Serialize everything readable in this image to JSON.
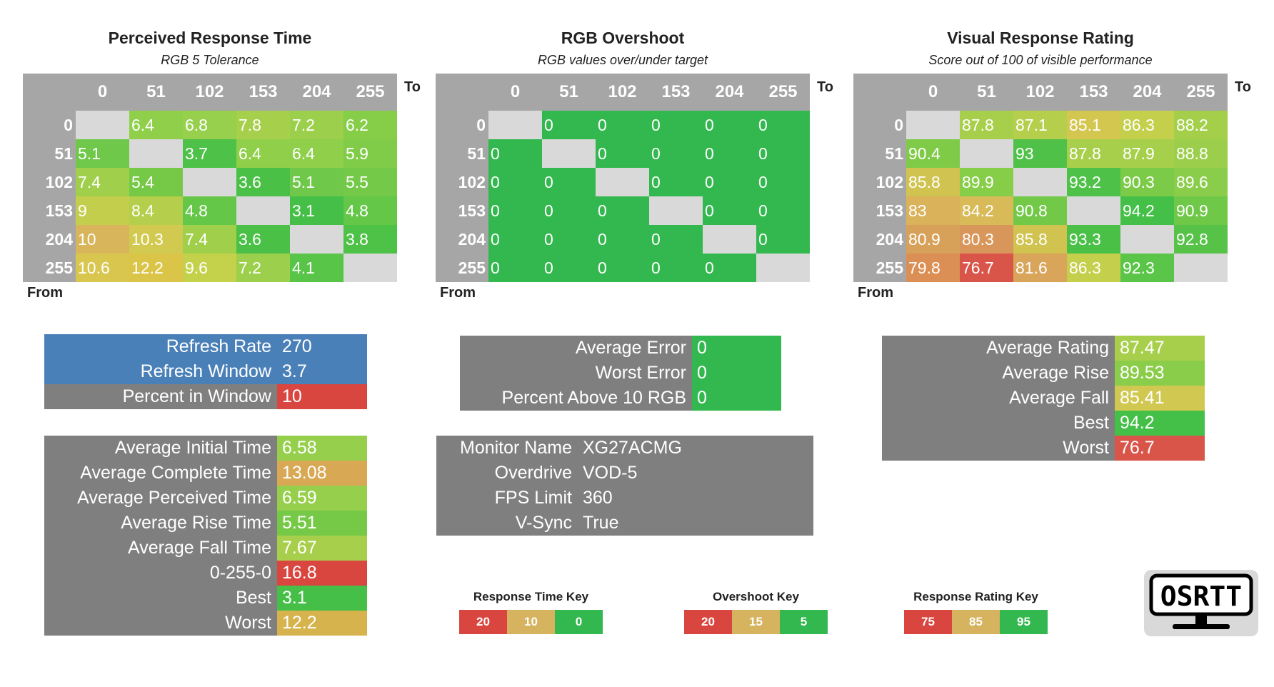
{
  "heatmaps": [
    {
      "id": "prt",
      "title": "Perceived Response Time",
      "subtitle": "RGB 5 Tolerance",
      "to_label": "To",
      "from_label": "From",
      "cols": [
        "0",
        "51",
        "102",
        "153",
        "204",
        "255"
      ],
      "rows": [
        "0",
        "51",
        "102",
        "153",
        "204",
        "255"
      ],
      "cells": [
        [
          "",
          "6.4",
          "6.8",
          "7.8",
          "7.2",
          "6.2"
        ],
        [
          "5.1",
          "",
          "3.7",
          "6.4",
          "6.4",
          "5.9"
        ],
        [
          "7.4",
          "5.4",
          "",
          "3.6",
          "5.1",
          "5.5"
        ],
        [
          "9",
          "8.4",
          "4.8",
          "",
          "3.1",
          "4.8"
        ],
        [
          "10",
          "10.3",
          "7.4",
          "3.6",
          "",
          "3.8"
        ],
        [
          "10.6",
          "12.2",
          "9.6",
          "7.2",
          "4.1",
          ""
        ]
      ],
      "colors": [
        [
          "#d9d9d9",
          "#8fcf4a",
          "#96d04c",
          "#a6cf4b",
          "#9bcf4c",
          "#86cd48"
        ],
        [
          "#6fc849",
          "#d9d9d9",
          "#4dc148",
          "#8fcf4a",
          "#8fcf4a",
          "#80cc48"
        ],
        [
          "#9fcf4b",
          "#76c947",
          "#d9d9d9",
          "#4ac047",
          "#6fc849",
          "#75c948"
        ],
        [
          "#c2ce4c",
          "#b5cf4c",
          "#65c748",
          "#d9d9d9",
          "#45bf47",
          "#65c748"
        ],
        [
          "#d8b45a",
          "#d2c950",
          "#a0cf4b",
          "#4ac047",
          "#d9d9d9",
          "#4ec147"
        ],
        [
          "#d8c64f",
          "#dac549",
          "#c4d24b",
          "#9bcf4c",
          "#58c448",
          "#d9d9d9"
        ]
      ]
    },
    {
      "id": "ovs",
      "title": "RGB Overshoot",
      "subtitle": "RGB values over/under target",
      "to_label": "To",
      "from_label": "From",
      "cols": [
        "0",
        "51",
        "102",
        "153",
        "204",
        "255"
      ],
      "rows": [
        "0",
        "51",
        "102",
        "153",
        "204",
        "255"
      ],
      "cells": [
        [
          "",
          "0",
          "0",
          "0",
          "0",
          "0"
        ],
        [
          "0",
          "",
          "0",
          "0",
          "0",
          "0"
        ],
        [
          "0",
          "0",
          "",
          "0",
          "0",
          "0"
        ],
        [
          "0",
          "0",
          "0",
          "",
          "0",
          "0"
        ],
        [
          "0",
          "0",
          "0",
          "0",
          "",
          "0"
        ],
        [
          "0",
          "0",
          "0",
          "0",
          "0",
          ""
        ]
      ],
      "colors": [
        [
          "#d9d9d9",
          "#33b84f",
          "#33b84f",
          "#33b84f",
          "#33b84f",
          "#33b84f"
        ],
        [
          "#33b84f",
          "#d9d9d9",
          "#33b84f",
          "#33b84f",
          "#33b84f",
          "#33b84f"
        ],
        [
          "#33b84f",
          "#33b84f",
          "#d9d9d9",
          "#33b84f",
          "#33b84f",
          "#33b84f"
        ],
        [
          "#33b84f",
          "#33b84f",
          "#33b84f",
          "#d9d9d9",
          "#33b84f",
          "#33b84f"
        ],
        [
          "#33b84f",
          "#33b84f",
          "#33b84f",
          "#33b84f",
          "#d9d9d9",
          "#33b84f"
        ],
        [
          "#33b84f",
          "#33b84f",
          "#33b84f",
          "#33b84f",
          "#33b84f",
          "#d9d9d9"
        ]
      ]
    },
    {
      "id": "vrr",
      "title": "Visual Response Rating",
      "subtitle": "Score out of 100 of visible performance",
      "to_label": "To",
      "from_label": "From",
      "cols": [
        "0",
        "51",
        "102",
        "153",
        "204",
        "255"
      ],
      "rows": [
        "0",
        "51",
        "102",
        "153",
        "204",
        "255"
      ],
      "cells": [
        [
          "",
          "87.8",
          "87.1",
          "85.1",
          "86.3",
          "88.2"
        ],
        [
          "90.4",
          "",
          "93",
          "87.8",
          "87.9",
          "88.8"
        ],
        [
          "85.8",
          "89.9",
          "",
          "93.2",
          "90.3",
          "89.6"
        ],
        [
          "83",
          "84.2",
          "90.8",
          "",
          "94.2",
          "90.9"
        ],
        [
          "80.9",
          "80.3",
          "85.8",
          "93.3",
          "",
          "92.8"
        ],
        [
          "79.8",
          "76.7",
          "81.6",
          "86.3",
          "92.3",
          ""
        ]
      ],
      "colors": [
        [
          "#d9d9d9",
          "#a8cf4b",
          "#b5cf4c",
          "#d3c750",
          "#c4cf4c",
          "#a4cf4b"
        ],
        [
          "#7fcb48",
          "#d9d9d9",
          "#4fc148",
          "#a8cf4b",
          "#a6cf4b",
          "#9bcf4b"
        ],
        [
          "#d0c350",
          "#86cd48",
          "#d9d9d9",
          "#4dc148",
          "#7bcb48",
          "#8acd4a"
        ],
        [
          "#d9b25a",
          "#d8ba58",
          "#72c948",
          "#d9d9d9",
          "#44bf47",
          "#70c848"
        ],
        [
          "#d8a15a",
          "#d9965b",
          "#d0c350",
          "#4ac047",
          "#d9d9d9",
          "#56c348"
        ],
        [
          "#dc8f55",
          "#d9554a",
          "#d8a55a",
          "#c4cf4c",
          "#5ac548",
          "#d9d9d9"
        ]
      ]
    }
  ],
  "refresh_box": {
    "rows": [
      {
        "label": "Refresh Rate",
        "value": "270",
        "bg": "#4a80b8",
        "val_bg": "#4a80b8"
      },
      {
        "label": "Refresh Window",
        "value": "3.7",
        "bg": "#4a80b8",
        "val_bg": "#4a80b8"
      },
      {
        "label": "Percent in Window",
        "value": "10",
        "bg": "#7f7f7f",
        "val_bg": "#d9453f"
      }
    ]
  },
  "time_box": {
    "rows": [
      {
        "label": "Average Initial Time",
        "value": "6.58",
        "val_bg": "#96cf4c"
      },
      {
        "label": "Average Complete Time",
        "value": "13.08",
        "val_bg": "#d9a854"
      },
      {
        "label": "Average Perceived Time",
        "value": "6.59",
        "val_bg": "#96cf4c"
      },
      {
        "label": "Average Rise Time",
        "value": "5.51",
        "val_bg": "#76c947"
      },
      {
        "label": "Average Fall Time",
        "value": "7.67",
        "val_bg": "#a8cf4b"
      },
      {
        "label": "0-255-0",
        "value": "16.8",
        "val_bg": "#d9453f"
      },
      {
        "label": "Best",
        "value": "3.1",
        "val_bg": "#45bf47"
      },
      {
        "label": "Worst",
        "value": "12.2",
        "val_bg": "#d6b34d"
      }
    ]
  },
  "error_box": {
    "rows": [
      {
        "label": "Average Error",
        "value": "0",
        "val_bg": "#33b84f"
      },
      {
        "label": "Worst Error",
        "value": "0",
        "val_bg": "#33b84f"
      },
      {
        "label": "Percent Above 10 RGB",
        "value": "0",
        "val_bg": "#33b84f"
      }
    ]
  },
  "monitor_box": {
    "rows": [
      {
        "label": "Monitor Name",
        "value": "XG27ACMG"
      },
      {
        "label": "Overdrive",
        "value": "VOD-5"
      },
      {
        "label": "FPS Limit",
        "value": "360"
      },
      {
        "label": "V-Sync",
        "value": "True"
      }
    ]
  },
  "rating_box": {
    "rows": [
      {
        "label": "Average Rating",
        "value": "87.47",
        "val_bg": "#a8cf4b"
      },
      {
        "label": "Average Rise",
        "value": "89.53",
        "val_bg": "#8acd4a"
      },
      {
        "label": "Average Fall",
        "value": "85.41",
        "val_bg": "#d0c850"
      },
      {
        "label": "Best",
        "value": "94.2",
        "val_bg": "#44bf47"
      },
      {
        "label": "Worst",
        "value": "76.7",
        "val_bg": "#d9554a"
      }
    ]
  },
  "keys": [
    {
      "title": "Response Time Key",
      "cells": [
        {
          "label": "20",
          "bg": "#d9453f"
        },
        {
          "label": "10",
          "bg": "#d6b35e"
        },
        {
          "label": "0",
          "bg": "#33b84f"
        }
      ]
    },
    {
      "title": "Overshoot Key",
      "cells": [
        {
          "label": "20",
          "bg": "#d9453f"
        },
        {
          "label": "15",
          "bg": "#d6b35e"
        },
        {
          "label": "5",
          "bg": "#33b84f"
        }
      ]
    },
    {
      "title": "Response Rating Key",
      "cells": [
        {
          "label": "75",
          "bg": "#d9453f"
        },
        {
          "label": "85",
          "bg": "#d6b35e"
        },
        {
          "label": "95",
          "bg": "#33b84f"
        }
      ]
    }
  ],
  "logo": {
    "text": "OSRTT",
    "icon": "monitor-icon"
  }
}
